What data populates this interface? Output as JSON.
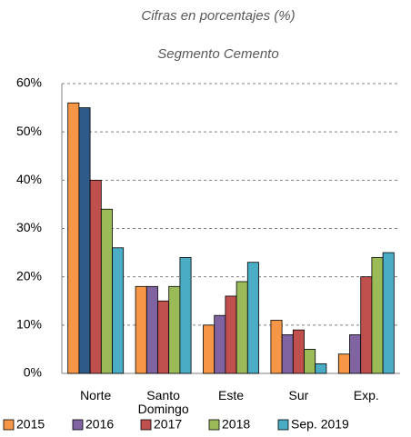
{
  "chart_data": {
    "type": "bar",
    "title": "Cifras en porcentajes (%)",
    "subtitle": "Segmento Cemento",
    "categories": [
      "Norte",
      "Santo Domingo",
      "Este",
      "Sur",
      "Exp."
    ],
    "series": [
      {
        "name": "2015",
        "color": "#f79646",
        "values": [
          56,
          18,
          10,
          11,
          4
        ]
      },
      {
        "name": "2016",
        "color": "#8064a2",
        "colors": [
          "#2e5a8a",
          "#8064a2",
          "#8064a2",
          "#8064a2",
          "#8064a2"
        ],
        "values": [
          55,
          18,
          12,
          8,
          8
        ]
      },
      {
        "name": "2017",
        "color": "#c0504d",
        "values": [
          40,
          15,
          16,
          9,
          20
        ]
      },
      {
        "name": "2018",
        "color": "#9bbb59",
        "values": [
          34,
          18,
          19,
          5,
          24
        ]
      },
      {
        "name": "Sep. 2019",
        "color": "#4bacc6",
        "values": [
          26,
          24,
          23,
          2,
          25
        ]
      }
    ],
    "ylim": [
      0,
      60
    ],
    "yticks": [
      {
        "value": 0,
        "label": "0%"
      },
      {
        "value": 10,
        "label": "10%"
      },
      {
        "value": 20,
        "label": "20%"
      },
      {
        "value": 30,
        "label": "30%"
      },
      {
        "value": 40,
        "label": "40%"
      },
      {
        "value": 50,
        "label": "50%"
      },
      {
        "value": 60,
        "label": "60%"
      }
    ],
    "grid": true,
    "legend": "bottom"
  }
}
